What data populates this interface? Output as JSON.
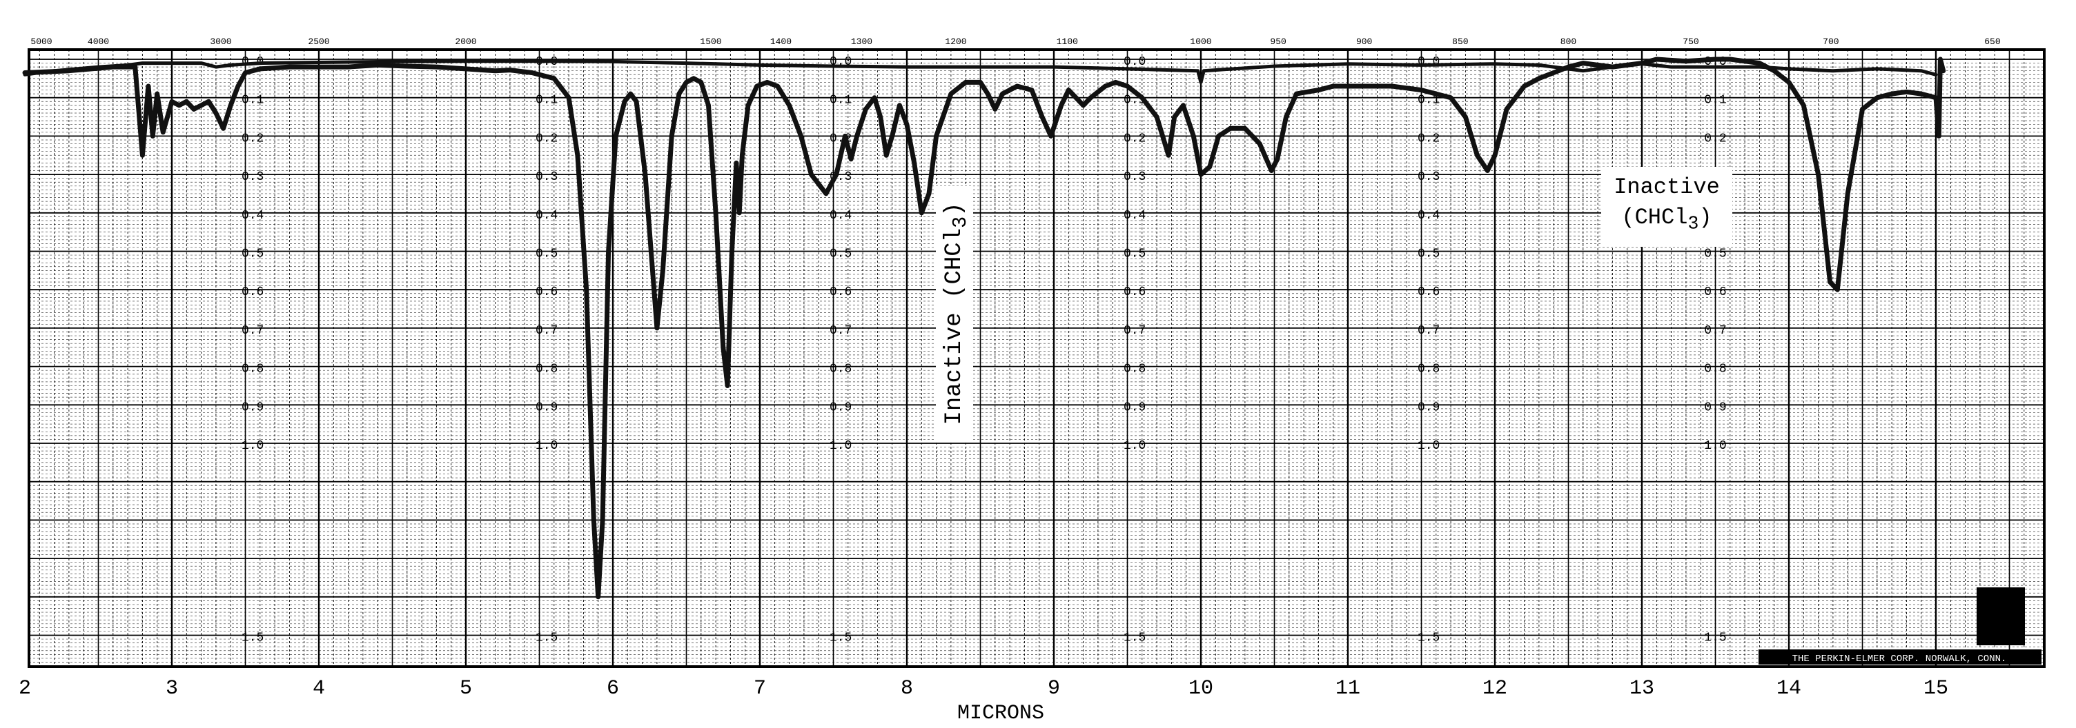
{
  "chart_data": {
    "type": "line",
    "title": "",
    "xlabel": "MICRONS",
    "ylabel": "",
    "x_scale": "linear",
    "y_scale": "absorbance (log)",
    "xlim": [
      2,
      15.6
    ],
    "ylim": [
      0.0,
      1.6
    ],
    "grid": true,
    "microns_ticks": [
      "2",
      "3",
      "4",
      "5",
      "6",
      "7",
      "8",
      "9",
      "10",
      "11",
      "12",
      "13",
      "14",
      "15"
    ],
    "wavenumber_ticks": [
      "5000",
      "4000",
      "3000",
      "2500",
      "2000",
      "1500",
      "1400",
      "1300",
      "1200",
      "1100",
      "1000",
      "950",
      "900",
      "850",
      "800",
      "750",
      "700",
      "650"
    ],
    "absorbance_ticks": [
      "0.0",
      "0.1",
      "0.2",
      "0.3",
      "0.4",
      "0.5",
      "0.6",
      "0.7",
      "0.8",
      "0.9",
      "1.0",
      "1.5"
    ],
    "series": [
      {
        "name": "",
        "role": "sample",
        "color": "#111111",
        "points": [
          [
            2.0,
            0.035
          ],
          [
            2.3,
            0.03
          ],
          [
            2.6,
            0.02
          ],
          [
            2.75,
            0.02
          ],
          [
            2.8,
            0.25
          ],
          [
            2.84,
            0.07
          ],
          [
            2.87,
            0.2
          ],
          [
            2.9,
            0.09
          ],
          [
            2.94,
            0.19
          ],
          [
            3.0,
            0.11
          ],
          [
            3.05,
            0.12
          ],
          [
            3.1,
            0.11
          ],
          [
            3.15,
            0.13
          ],
          [
            3.2,
            0.12
          ],
          [
            3.25,
            0.11
          ],
          [
            3.3,
            0.14
          ],
          [
            3.35,
            0.18
          ],
          [
            3.4,
            0.12
          ],
          [
            3.45,
            0.07
          ],
          [
            3.5,
            0.035
          ],
          [
            3.6,
            0.025
          ],
          [
            3.8,
            0.02
          ],
          [
            4.0,
            0.02
          ],
          [
            4.2,
            0.02
          ],
          [
            4.4,
            0.015
          ],
          [
            4.6,
            0.018
          ],
          [
            4.8,
            0.02
          ],
          [
            5.0,
            0.025
          ],
          [
            5.2,
            0.03
          ],
          [
            5.3,
            0.028
          ],
          [
            5.45,
            0.035
          ],
          [
            5.6,
            0.05
          ],
          [
            5.7,
            0.1
          ],
          [
            5.76,
            0.25
          ],
          [
            5.82,
            0.6
          ],
          [
            5.87,
            1.2
          ],
          [
            5.9,
            1.4
          ],
          [
            5.93,
            1.2
          ],
          [
            5.97,
            0.5
          ],
          [
            6.02,
            0.2
          ],
          [
            6.08,
            0.11
          ],
          [
            6.12,
            0.09
          ],
          [
            6.16,
            0.11
          ],
          [
            6.22,
            0.3
          ],
          [
            6.27,
            0.55
          ],
          [
            6.3,
            0.7
          ],
          [
            6.34,
            0.55
          ],
          [
            6.4,
            0.2
          ],
          [
            6.45,
            0.09
          ],
          [
            6.5,
            0.06
          ],
          [
            6.55,
            0.05
          ],
          [
            6.6,
            0.06
          ],
          [
            6.65,
            0.12
          ],
          [
            6.7,
            0.4
          ],
          [
            6.75,
            0.75
          ],
          [
            6.78,
            0.85
          ],
          [
            6.81,
            0.5
          ],
          [
            6.84,
            0.27
          ],
          [
            6.86,
            0.4
          ],
          [
            6.88,
            0.25
          ],
          [
            6.92,
            0.12
          ],
          [
            6.98,
            0.07
          ],
          [
            7.05,
            0.06
          ],
          [
            7.12,
            0.07
          ],
          [
            7.2,
            0.12
          ],
          [
            7.28,
            0.2
          ],
          [
            7.35,
            0.3
          ],
          [
            7.45,
            0.35
          ],
          [
            7.52,
            0.3
          ],
          [
            7.58,
            0.2
          ],
          [
            7.62,
            0.26
          ],
          [
            7.66,
            0.2
          ],
          [
            7.72,
            0.13
          ],
          [
            7.78,
            0.1
          ],
          [
            7.82,
            0.15
          ],
          [
            7.86,
            0.25
          ],
          [
            7.9,
            0.2
          ],
          [
            7.95,
            0.12
          ],
          [
            8.0,
            0.17
          ],
          [
            8.05,
            0.27
          ],
          [
            8.1,
            0.4
          ],
          [
            8.15,
            0.35
          ],
          [
            8.2,
            0.2
          ],
          [
            8.3,
            0.09
          ],
          [
            8.4,
            0.06
          ],
          [
            8.5,
            0.06
          ],
          [
            8.55,
            0.09
          ],
          [
            8.6,
            0.13
          ],
          [
            8.65,
            0.09
          ],
          [
            8.75,
            0.07
          ],
          [
            8.85,
            0.08
          ],
          [
            8.92,
            0.15
          ],
          [
            8.98,
            0.2
          ],
          [
            9.05,
            0.12
          ],
          [
            9.1,
            0.08
          ],
          [
            9.15,
            0.1
          ],
          [
            9.2,
            0.12
          ],
          [
            9.25,
            0.1
          ],
          [
            9.35,
            0.07
          ],
          [
            9.42,
            0.06
          ],
          [
            9.5,
            0.07
          ],
          [
            9.6,
            0.1
          ],
          [
            9.7,
            0.15
          ],
          [
            9.78,
            0.25
          ],
          [
            9.82,
            0.15
          ],
          [
            9.88,
            0.12
          ],
          [
            9.95,
            0.2
          ],
          [
            10.0,
            0.3
          ],
          [
            10.06,
            0.28
          ],
          [
            10.12,
            0.2
          ],
          [
            10.2,
            0.18
          ],
          [
            10.3,
            0.18
          ],
          [
            10.4,
            0.22
          ],
          [
            10.48,
            0.29
          ],
          [
            10.52,
            0.26
          ],
          [
            10.58,
            0.15
          ],
          [
            10.65,
            0.09
          ],
          [
            10.8,
            0.08
          ],
          [
            10.9,
            0.07
          ],
          [
            11.0,
            0.07
          ],
          [
            11.1,
            0.07
          ],
          [
            11.3,
            0.07
          ],
          [
            11.5,
            0.08
          ],
          [
            11.7,
            0.1
          ],
          [
            11.8,
            0.15
          ],
          [
            11.88,
            0.25
          ],
          [
            11.95,
            0.29
          ],
          [
            12.0,
            0.25
          ],
          [
            12.08,
            0.13
          ],
          [
            12.2,
            0.07
          ],
          [
            12.3,
            0.05
          ],
          [
            12.5,
            0.02
          ],
          [
            12.6,
            0.01
          ],
          [
            12.7,
            0.015
          ],
          [
            12.8,
            0.02
          ],
          [
            12.9,
            0.015
          ],
          [
            13.0,
            0.01
          ],
          [
            13.1,
            0.0
          ],
          [
            13.3,
            0.005
          ],
          [
            13.5,
            0.0
          ],
          [
            13.6,
            0.0
          ],
          [
            13.7,
            0.005
          ],
          [
            13.8,
            0.01
          ],
          [
            13.9,
            0.03
          ],
          [
            14.0,
            0.06
          ],
          [
            14.1,
            0.12
          ],
          [
            14.2,
            0.3
          ],
          [
            14.28,
            0.58
          ],
          [
            14.33,
            0.6
          ],
          [
            14.4,
            0.35
          ],
          [
            14.5,
            0.13
          ],
          [
            14.6,
            0.1
          ],
          [
            14.7,
            0.09
          ],
          [
            14.8,
            0.085
          ],
          [
            14.9,
            0.09
          ],
          [
            15.0,
            0.1
          ],
          [
            15.02,
            0.2
          ],
          [
            15.03,
            0.0
          ],
          [
            15.05,
            0.03
          ]
        ]
      },
      {
        "name": "",
        "role": "reference",
        "color": "#111111",
        "points": [
          [
            2.0,
            0.04
          ],
          [
            2.2,
            0.03
          ],
          [
            2.5,
            0.02
          ],
          [
            2.7,
            0.015
          ],
          [
            2.8,
            0.01
          ],
          [
            3.0,
            0.01
          ],
          [
            3.2,
            0.01
          ],
          [
            3.3,
            0.02
          ],
          [
            3.4,
            0.015
          ],
          [
            3.6,
            0.01
          ],
          [
            4.0,
            0.008
          ],
          [
            4.5,
            0.006
          ],
          [
            5.0,
            0.005
          ],
          [
            5.5,
            0.005
          ],
          [
            6.0,
            0.006
          ],
          [
            6.5,
            0.01
          ],
          [
            7.0,
            0.015
          ],
          [
            7.5,
            0.018
          ],
          [
            8.0,
            0.02
          ],
          [
            8.5,
            0.02
          ],
          [
            9.0,
            0.02
          ],
          [
            9.5,
            0.025
          ],
          [
            9.98,
            0.03
          ],
          [
            10.0,
            0.06
          ],
          [
            10.02,
            0.03
          ],
          [
            10.5,
            0.018
          ],
          [
            11.0,
            0.012
          ],
          [
            11.5,
            0.015
          ],
          [
            12.0,
            0.012
          ],
          [
            12.3,
            0.015
          ],
          [
            12.6,
            0.03
          ],
          [
            12.8,
            0.02
          ],
          [
            13.0,
            0.012
          ],
          [
            13.2,
            0.02
          ],
          [
            13.5,
            0.02
          ],
          [
            13.8,
            0.02
          ],
          [
            14.0,
            0.025
          ],
          [
            14.3,
            0.03
          ],
          [
            14.6,
            0.025
          ],
          [
            14.9,
            0.03
          ],
          [
            15.0,
            0.04
          ]
        ]
      }
    ],
    "annotations": [
      {
        "text": "Inactive (CHCl3)",
        "label": "Inactive",
        "formula": "CHCl",
        "subscript": "3",
        "orientation": "vertical"
      },
      {
        "text": "Inactive (CHCl3)",
        "label": "Inactive",
        "formula": "CHCl",
        "subscript": "3",
        "orientation": "horizontal"
      }
    ],
    "footer": "THE PERKIN-ELMER CORP. NORWALK, CONN."
  }
}
